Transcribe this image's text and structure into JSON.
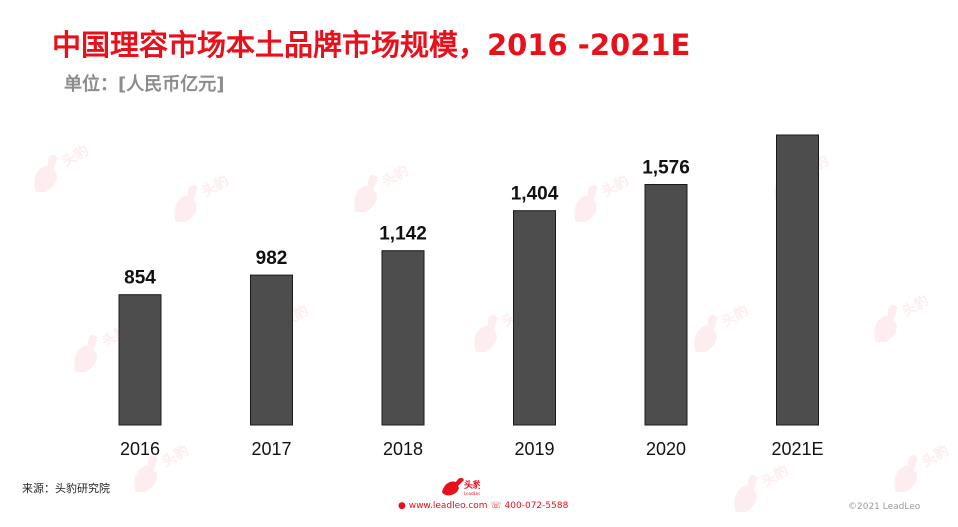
{
  "title": "中国理容市场本土品牌市场规模，2016 -2021E",
  "unit": "单位：[人民币亿元]",
  "source": "来源：头豹研究院",
  "footer": {
    "contact": "● www.leadleo.com ☏ 400-072-5588",
    "copyright": "©2021 LeadLeo",
    "brand_color": "#e8101b"
  },
  "chart_data": {
    "type": "bar",
    "categories": [
      "2016",
      "2017",
      "2018",
      "2019",
      "2020",
      "2021E"
    ],
    "values": [
      854,
      982,
      1142,
      1404,
      1576,
      1900
    ],
    "data_labels": [
      "854",
      "982",
      "1,142",
      "1,404",
      "1,576",
      ""
    ],
    "bar_color": "#4d4d4d",
    "xlabel": "",
    "ylabel": "",
    "ylim": [
      0,
      2000
    ],
    "grid": false,
    "legend": "none"
  }
}
